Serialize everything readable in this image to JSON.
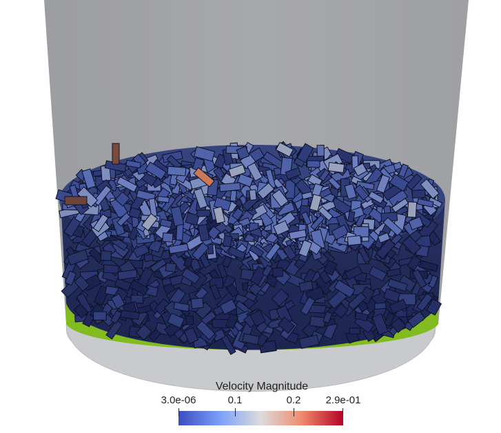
{
  "scene": {
    "background_color": "#ffffff",
    "container_wall_color": "#a3a4a8",
    "container_rim_color": "#c7c8cc",
    "base_color": "#82bb1e",
    "particle_outline_color": "#0e1124"
  },
  "legend": {
    "title": "Velocity Magnitude",
    "ticks": [
      {
        "label": "3.0e-06",
        "value": 3e-06
      },
      {
        "label": "0.1",
        "value": 0.1
      },
      {
        "label": "0.2",
        "value": 0.2
      },
      {
        "label": "2.9e-01",
        "value": 0.29
      }
    ],
    "range": [
      3e-06,
      0.29
    ],
    "colormap": [
      "#3b4cc0",
      "#8db0fe",
      "#dddddd",
      "#f49a7b",
      "#b40426"
    ]
  }
}
